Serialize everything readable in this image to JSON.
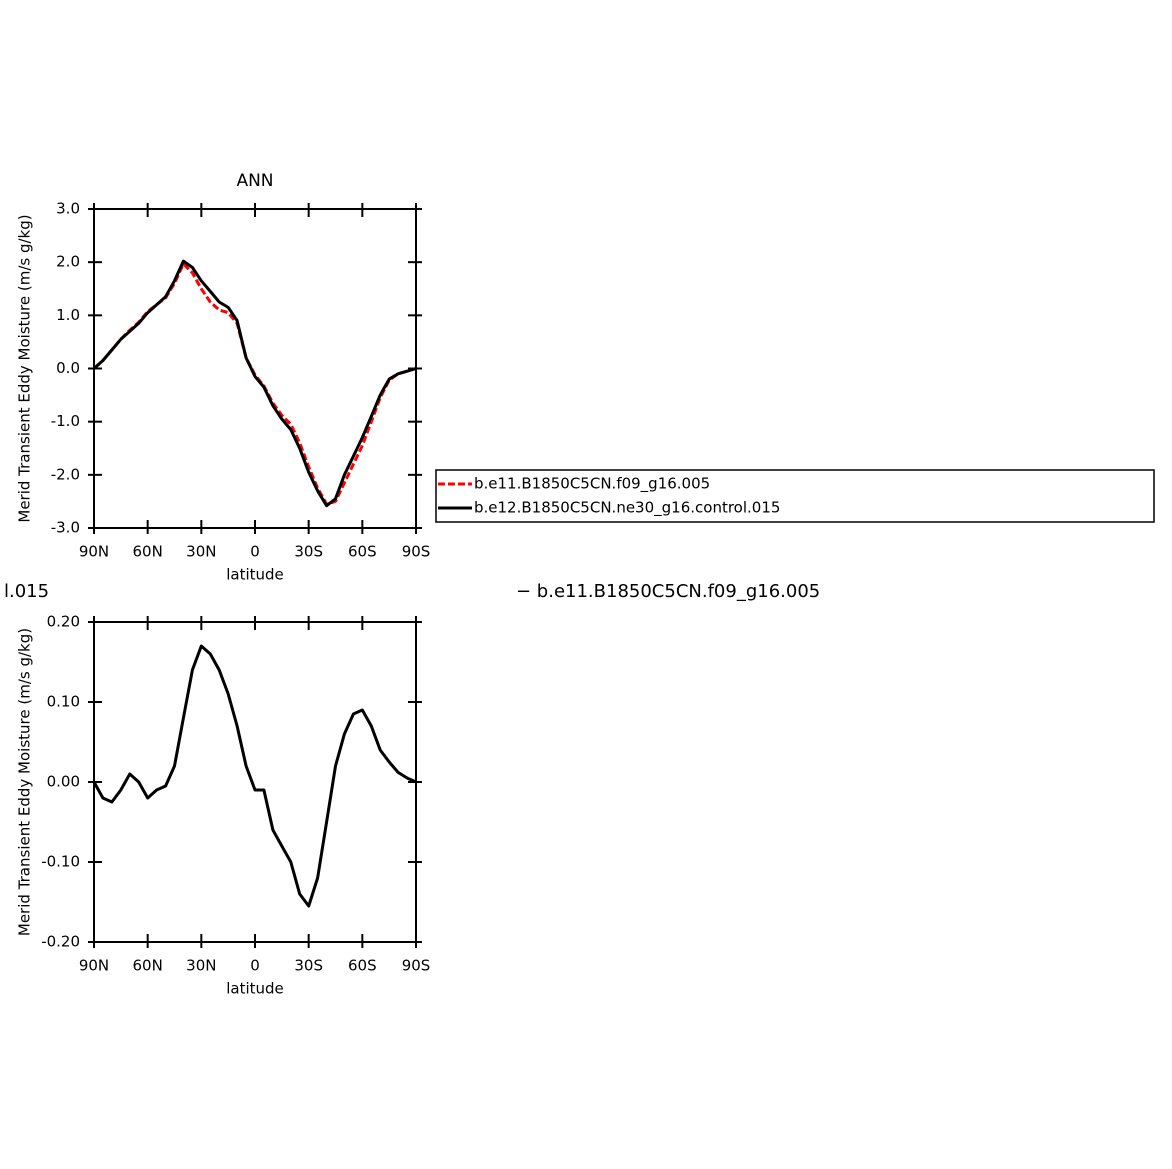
{
  "chart_data": [
    {
      "type": "line",
      "title": "ANN",
      "xlabel": "latitude",
      "ylabel": "Merid Transient Eddy Moisture (m/s g/kg)",
      "x": [
        90,
        85,
        80,
        75,
        70,
        65,
        60,
        55,
        50,
        45,
        40,
        35,
        30,
        25,
        20,
        15,
        10,
        5,
        0,
        -5,
        -10,
        -15,
        -20,
        -25,
        -30,
        -35,
        -40,
        -45,
        -50,
        -55,
        -60,
        -65,
        -70,
        -75,
        -80,
        -85,
        -90
      ],
      "xlim": [
        90,
        -90
      ],
      "xticks": [
        {
          "value": 90,
          "label": "90N"
        },
        {
          "value": 60,
          "label": "60N"
        },
        {
          "value": 30,
          "label": "30N"
        },
        0,
        {
          "value": -30,
          "label": "30S"
        },
        {
          "value": -60,
          "label": "60S"
        },
        {
          "value": -90,
          "label": "90S"
        }
      ],
      "ylim": [
        -3,
        3
      ],
      "yticks": [
        {
          "value": 3,
          "label": "3.0"
        },
        {
          "value": 2,
          "label": "2.0"
        },
        {
          "value": 1,
          "label": "1.0"
        },
        {
          "value": 0,
          "label": "0.0"
        },
        {
          "value": -1,
          "label": "-1.0"
        },
        {
          "value": -2,
          "label": "-2.0"
        },
        {
          "value": -3,
          "label": "-3.0"
        }
      ],
      "series": [
        {
          "name": "b.e11.B1850C5CN.f09_g16.005",
          "color": "#ff0000",
          "dashed": true,
          "values": [
            0,
            0.15,
            0.35,
            0.55,
            0.72,
            0.87,
            1.07,
            1.2,
            1.33,
            1.6,
            1.97,
            1.8,
            1.5,
            1.25,
            1.1,
            1.05,
            0.85,
            0.2,
            -0.12,
            -0.33,
            -0.65,
            -0.88,
            -1.05,
            -1.4,
            -1.85,
            -2.25,
            -2.55,
            -2.5,
            -2.15,
            -1.8,
            -1.45,
            -1.0,
            -0.55,
            -0.22,
            -0.1,
            -0.05,
            0
          ]
        },
        {
          "name": "b.e12.B1850C5CN.ne30_g16.control.015",
          "color": "#000000",
          "dashed": false,
          "values": [
            0,
            0.15,
            0.35,
            0.55,
            0.7,
            0.85,
            1.05,
            1.2,
            1.35,
            1.65,
            2.02,
            1.9,
            1.65,
            1.45,
            1.25,
            1.15,
            0.9,
            0.2,
            -0.15,
            -0.35,
            -0.7,
            -0.95,
            -1.15,
            -1.5,
            -1.95,
            -2.3,
            -2.58,
            -2.45,
            -2.0,
            -1.65,
            -1.3,
            -0.9,
            -0.5,
            -0.2,
            -0.1,
            -0.05,
            0
          ]
        }
      ]
    },
    {
      "type": "line",
      "title_left": "l.015",
      "title_right": "− b.e11.B1850C5CN.f09_g16.005",
      "xlabel": "latitude",
      "ylabel": "Merid Transient Eddy Moisture (m/s g/kg)",
      "x": [
        90,
        85,
        80,
        75,
        70,
        65,
        60,
        55,
        50,
        45,
        40,
        35,
        30,
        25,
        20,
        15,
        10,
        5,
        0,
        -5,
        -10,
        -15,
        -20,
        -25,
        -30,
        -35,
        -40,
        -45,
        -50,
        -55,
        -60,
        -65,
        -70,
        -75,
        -80,
        -85,
        -90
      ],
      "xlim": [
        90,
        -90
      ],
      "xticks": [
        {
          "value": 90,
          "label": "90N"
        },
        {
          "value": 60,
          "label": "60N"
        },
        {
          "value": 30,
          "label": "30N"
        },
        0,
        {
          "value": -30,
          "label": "30S"
        },
        {
          "value": -60,
          "label": "60S"
        },
        {
          "value": -90,
          "label": "90S"
        }
      ],
      "ylim": [
        -0.2,
        0.2
      ],
      "yticks": [
        {
          "value": 0.2,
          "label": "0.20"
        },
        {
          "value": 0.1,
          "label": "0.10"
        },
        {
          "value": 0,
          "label": "0.00"
        },
        {
          "value": -0.1,
          "label": "-0.10"
        },
        {
          "value": -0.2,
          "label": "-0.20"
        }
      ],
      "series": [
        {
          "color": "#000000",
          "dashed": false,
          "values": [
            0.0,
            -0.02,
            -0.025,
            -0.01,
            0.01,
            0.0,
            -0.02,
            -0.01,
            -0.005,
            0.02,
            0.08,
            0.14,
            0.17,
            0.16,
            0.14,
            0.11,
            0.07,
            0.02,
            -0.01,
            -0.01,
            -0.06,
            -0.08,
            -0.1,
            -0.14,
            -0.155,
            -0.12,
            -0.05,
            0.02,
            0.06,
            0.085,
            0.09,
            0.07,
            0.04,
            0.025,
            0.012,
            0.005,
            0.0
          ]
        }
      ]
    }
  ]
}
